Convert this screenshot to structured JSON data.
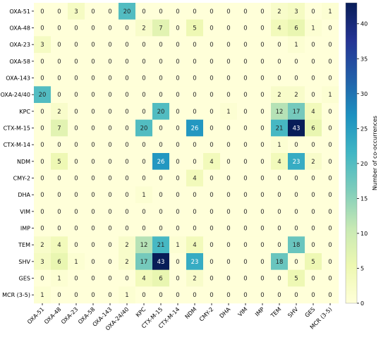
{
  "chart_data": {
    "type": "heatmap",
    "rows": [
      "OXA-51",
      "OXA-48",
      "OXA-23",
      "OXA-58",
      "OXA-143",
      "OXA-24/40",
      "KPC",
      "CTX-M-15",
      "CTX-M-14",
      "NDM",
      "CMY-2",
      "DHA",
      "VIM",
      "IMP",
      "TEM",
      "SHV",
      "GES",
      "MCR (3-5)"
    ],
    "columns": [
      "OXA-51",
      "OXA-48",
      "OXA-23",
      "OXA-58",
      "OXA-143",
      "OXA-24/40",
      "KPC",
      "CTX-M-15",
      "CTX-M-14",
      "NDM",
      "CMY-2",
      "DHA",
      "VIM",
      "IMP",
      "TEM",
      "SHV",
      "GES",
      "MCR (3-5)"
    ],
    "values": [
      [
        0,
        0,
        3,
        0,
        0,
        20,
        0,
        0,
        0,
        0,
        0,
        0,
        0,
        0,
        2,
        3,
        0,
        1
      ],
      [
        0,
        0,
        0,
        0,
        0,
        0,
        2,
        7,
        0,
        5,
        0,
        0,
        0,
        0,
        4,
        6,
        1,
        0
      ],
      [
        3,
        0,
        0,
        0,
        0,
        0,
        0,
        0,
        0,
        0,
        0,
        0,
        0,
        0,
        0,
        1,
        0,
        0
      ],
      [
        0,
        0,
        0,
        0,
        0,
        0,
        0,
        0,
        0,
        0,
        0,
        0,
        0,
        0,
        0,
        0,
        0,
        0
      ],
      [
        0,
        0,
        0,
        0,
        0,
        0,
        0,
        0,
        0,
        0,
        0,
        0,
        0,
        0,
        0,
        0,
        0,
        0
      ],
      [
        20,
        0,
        0,
        0,
        0,
        0,
        0,
        0,
        0,
        0,
        0,
        0,
        0,
        0,
        2,
        2,
        0,
        1
      ],
      [
        0,
        2,
        0,
        0,
        0,
        0,
        0,
        20,
        0,
        0,
        0,
        1,
        0,
        0,
        12,
        17,
        4,
        0
      ],
      [
        0,
        7,
        0,
        0,
        0,
        0,
        20,
        0,
        0,
        26,
        0,
        0,
        0,
        0,
        21,
        43,
        6,
        0
      ],
      [
        0,
        0,
        0,
        0,
        0,
        0,
        0,
        0,
        0,
        0,
        0,
        0,
        0,
        0,
        1,
        0,
        0,
        0
      ],
      [
        0,
        5,
        0,
        0,
        0,
        0,
        0,
        26,
        0,
        0,
        4,
        0,
        0,
        0,
        4,
        23,
        2,
        0
      ],
      [
        0,
        0,
        0,
        0,
        0,
        0,
        0,
        0,
        0,
        4,
        0,
        0,
        0,
        0,
        0,
        0,
        0,
        0
      ],
      [
        0,
        0,
        0,
        0,
        0,
        0,
        1,
        0,
        0,
        0,
        0,
        0,
        0,
        0,
        0,
        0,
        0,
        0
      ],
      [
        0,
        0,
        0,
        0,
        0,
        0,
        0,
        0,
        0,
        0,
        0,
        0,
        0,
        0,
        0,
        0,
        0,
        0
      ],
      [
        0,
        0,
        0,
        0,
        0,
        0,
        0,
        0,
        0,
        0,
        0,
        0,
        0,
        0,
        0,
        0,
        0,
        0
      ],
      [
        2,
        4,
        0,
        0,
        0,
        2,
        12,
        21,
        1,
        4,
        0,
        0,
        0,
        0,
        0,
        18,
        0,
        0
      ],
      [
        3,
        6,
        1,
        0,
        0,
        2,
        17,
        43,
        0,
        23,
        0,
        0,
        0,
        0,
        18,
        0,
        5,
        0
      ],
      [
        0,
        1,
        0,
        0,
        0,
        0,
        4,
        6,
        0,
        2,
        0,
        0,
        0,
        0,
        0,
        5,
        0,
        0
      ],
      [
        1,
        0,
        0,
        0,
        0,
        1,
        0,
        0,
        0,
        0,
        0,
        0,
        0,
        0,
        0,
        0,
        0,
        0
      ]
    ],
    "vmin": 0,
    "vmax": 43,
    "colormap": "YlGnBu",
    "colorbar": {
      "label": "Number of co-occurrences",
      "ticks": [
        0,
        5,
        10,
        15,
        20,
        25,
        30,
        35,
        40
      ]
    },
    "title": "",
    "xlabel": "",
    "ylabel": ""
  }
}
